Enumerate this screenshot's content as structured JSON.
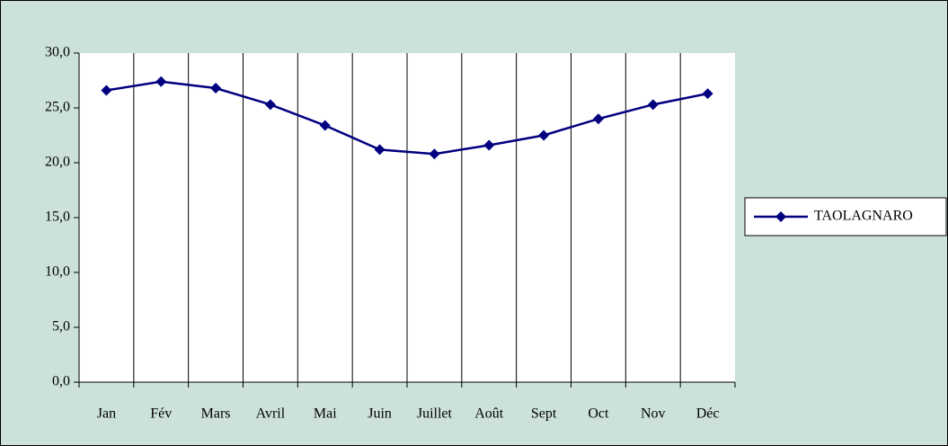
{
  "chart_data": {
    "type": "line",
    "categories": [
      "Jan",
      "Fév",
      "Mars",
      "Avril",
      "Mai",
      "Juin",
      "Juillet",
      "Août",
      "Sept",
      "Oct",
      "Nov",
      "Déc"
    ],
    "series": [
      {
        "name": "TAOLAGNARO",
        "color": "#000080",
        "values": [
          26.6,
          27.4,
          26.8,
          25.3,
          23.4,
          21.2,
          20.8,
          21.6,
          22.5,
          24.0,
          25.3,
          26.3
        ]
      }
    ],
    "ylim": [
      0,
      30
    ],
    "yticks": [
      {
        "value": 0,
        "label": "0,0"
      },
      {
        "value": 5,
        "label": "5,0"
      },
      {
        "value": 10,
        "label": "10,0"
      },
      {
        "value": 15,
        "label": "15,0"
      },
      {
        "value": 20,
        "label": "20,0"
      },
      {
        "value": 25,
        "label": "25,0"
      },
      {
        "value": 30,
        "label": "30,0"
      }
    ],
    "legend": "right"
  }
}
